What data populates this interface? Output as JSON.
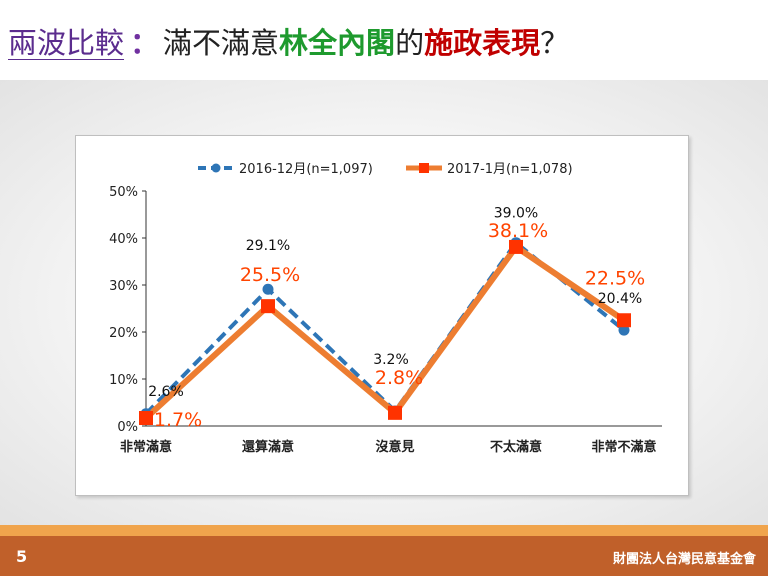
{
  "title": {
    "part1": "兩波比較",
    "colon": "：",
    "part2": "滿不滿意",
    "part3": "林全內閣",
    "part4": "的",
    "part5": "施政表現",
    "part6": "？"
  },
  "footer": {
    "page_number": "5",
    "organization": "財團法人台灣民意基金會"
  },
  "colors": {
    "series1": "#2e75b6",
    "series2": "#ed7d31",
    "series2_marker": "#ff3300",
    "label2": "#ff4400",
    "footer": "#c0602a"
  },
  "chart_data": {
    "type": "line",
    "categories": [
      "非常滿意",
      "還算滿意",
      "沒意見",
      "不太滿意",
      "非常不滿意"
    ],
    "ylim": [
      0,
      50
    ],
    "yticks": [
      "0%",
      "10%",
      "20%",
      "30%",
      "40%",
      "50%"
    ],
    "grid": false,
    "legend_position": "top",
    "series": [
      {
        "name": "2016-12月(n=1,097)",
        "values": [
          2.6,
          29.1,
          3.2,
          39.0,
          20.4
        ],
        "labels": [
          "2.6%",
          "29.1%",
          "3.2%",
          "39.0%",
          "20.4%"
        ],
        "style": "dashed-circle"
      },
      {
        "name": "2017-1月(n=1,078)",
        "values": [
          1.7,
          25.5,
          2.8,
          38.1,
          22.5
        ],
        "labels": [
          "1.7%",
          "25.5%",
          "2.8%",
          "38.1%",
          "22.5%"
        ],
        "style": "solid-square"
      }
    ]
  }
}
